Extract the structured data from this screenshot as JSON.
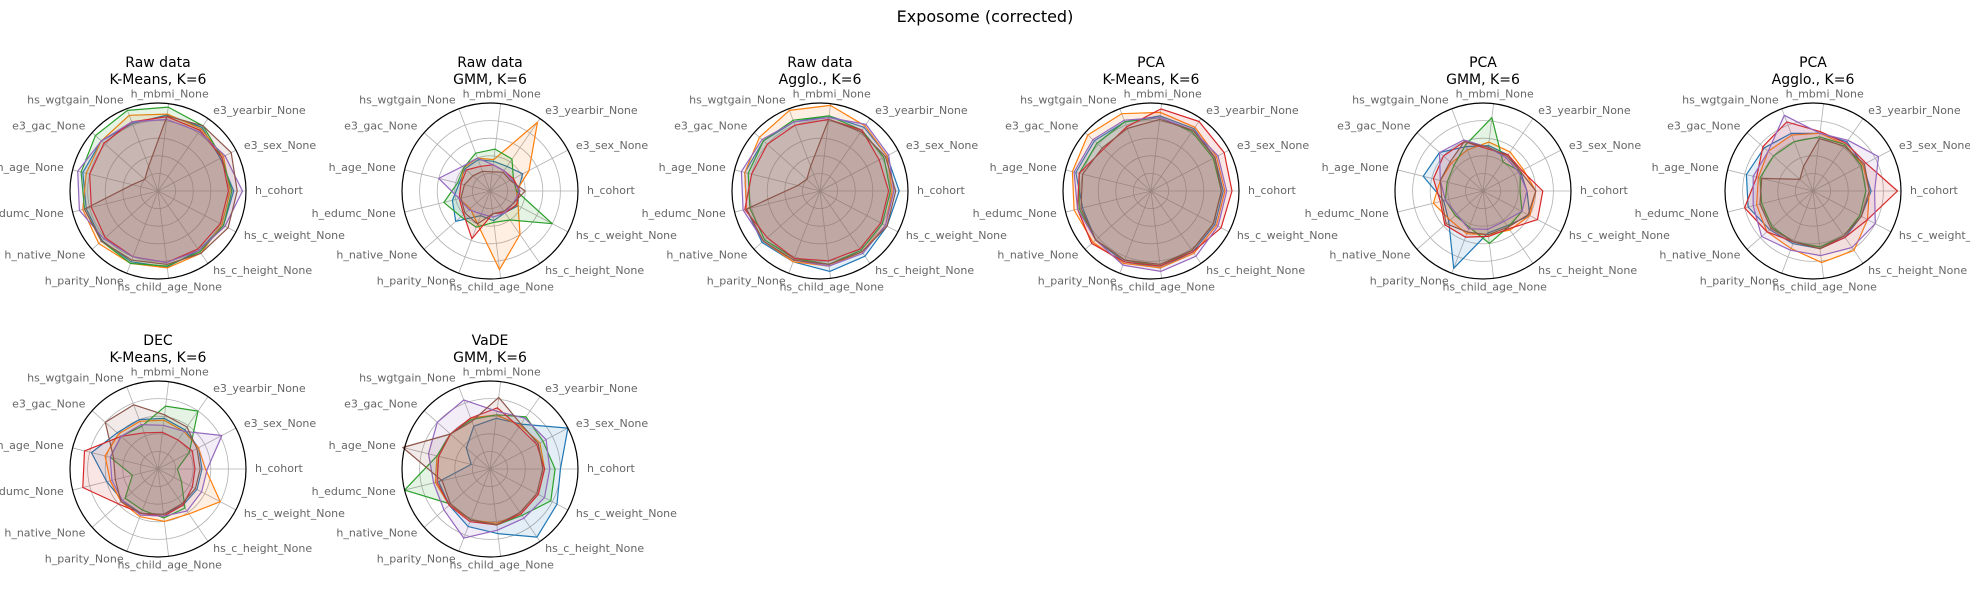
{
  "figure": {
    "title": "Exposome (corrected)"
  },
  "axis_labels": [
    "h_cohort",
    "e3_sex_None",
    "e3_yearbir_None",
    "h_mbmi_None",
    "hs_wgtgain_None",
    "e3_gac_None",
    "h_age_None",
    "h_edumc_None",
    "h_native_None",
    "h_parity_None",
    "hs_child_age_None",
    "hs_c_height_None",
    "hs_c_weight_None"
  ],
  "colors": [
    "#1f77b4",
    "#ff7f0e",
    "#2ca02c",
    "#d62728",
    "#9467bd",
    "#8c564b"
  ],
  "chart_data": [
    {
      "type": "radar",
      "title_line1": "Raw data",
      "title_line2": "K-Means, K=6",
      "rmax": 1.0,
      "grid": true,
      "series": [
        {
          "values": [
            0.86,
            0.8,
            0.88,
            0.87,
            0.82,
            0.86,
            0.88,
            0.84,
            0.85,
            0.86,
            0.87,
            0.82,
            0.84
          ]
        },
        {
          "values": [
            0.82,
            0.84,
            0.86,
            0.88,
            0.92,
            0.86,
            0.84,
            0.88,
            0.9,
            0.88,
            0.88,
            0.86,
            0.82
          ]
        },
        {
          "values": [
            0.84,
            0.82,
            0.9,
            0.96,
            0.98,
            0.95,
            0.9,
            0.86,
            0.86,
            0.88,
            0.86,
            0.84,
            0.84
          ]
        },
        {
          "values": [
            0.8,
            0.82,
            0.84,
            0.85,
            0.84,
            0.82,
            0.8,
            0.78,
            0.8,
            0.8,
            0.82,
            0.8,
            0.8
          ]
        },
        {
          "values": [
            0.96,
            0.86,
            0.82,
            0.82,
            0.84,
            0.86,
            0.94,
            0.92,
            0.82,
            0.8,
            0.82,
            0.82,
            0.86
          ]
        },
        {
          "values": [
            0.9,
            0.94,
            0.9,
            0.86,
            0.3,
            0.2,
            0.3,
            0.86,
            0.86,
            0.84,
            0.84,
            0.86,
            0.9
          ]
        }
      ]
    },
    {
      "type": "radar",
      "title_line1": "Raw data",
      "title_line2": "GMM, K=6",
      "rmax": 1.0,
      "grid": true,
      "series": [
        {
          "values": [
            0.32,
            0.42,
            0.34,
            0.34,
            0.38,
            0.38,
            0.36,
            0.44,
            0.52,
            0.3,
            0.34,
            0.3,
            0.36
          ]
        },
        {
          "values": [
            0.3,
            0.5,
            0.95,
            0.36,
            0.4,
            0.4,
            0.34,
            0.36,
            0.3,
            0.4,
            0.9,
            0.6,
            0.36
          ]
        },
        {
          "values": [
            0.3,
            0.3,
            0.44,
            0.48,
            0.46,
            0.4,
            0.38,
            0.54,
            0.44,
            0.44,
            0.36,
            0.4,
            0.8
          ]
        },
        {
          "values": [
            0.34,
            0.3,
            0.28,
            0.3,
            0.3,
            0.36,
            0.34,
            0.36,
            0.4,
            0.58,
            0.26,
            0.3,
            0.34
          ]
        },
        {
          "values": [
            0.34,
            0.28,
            0.28,
            0.3,
            0.4,
            0.42,
            0.6,
            0.36,
            0.32,
            0.28,
            0.3,
            0.3,
            0.3
          ]
        },
        {
          "values": [
            0.4,
            0.26,
            0.26,
            0.22,
            0.24,
            0.26,
            0.3,
            0.34,
            0.38,
            0.4,
            0.26,
            0.28,
            0.3
          ]
        }
      ]
    },
    {
      "type": "radar",
      "title_line1": "Raw data",
      "title_line2": "Agglo., K=6",
      "rmax": 1.0,
      "grid": true,
      "series": [
        {
          "values": [
            0.9,
            0.86,
            0.88,
            0.86,
            0.84,
            0.86,
            0.88,
            0.86,
            0.88,
            0.86,
            0.92,
            0.9,
            0.86
          ]
        },
        {
          "values": [
            0.82,
            0.86,
            0.9,
            0.98,
            0.98,
            0.92,
            0.88,
            0.86,
            0.86,
            0.86,
            0.86,
            0.84,
            0.84
          ]
        },
        {
          "values": [
            0.8,
            0.82,
            0.84,
            0.86,
            0.86,
            0.86,
            0.84,
            0.82,
            0.84,
            0.82,
            0.84,
            0.82,
            0.8
          ]
        },
        {
          "values": [
            0.78,
            0.76,
            0.84,
            0.82,
            0.8,
            0.8,
            0.8,
            0.88,
            0.8,
            0.82,
            0.8,
            0.8,
            0.78
          ]
        },
        {
          "values": [
            0.84,
            0.88,
            0.92,
            0.84,
            0.84,
            0.88,
            0.92,
            0.9,
            0.86,
            0.84,
            0.86,
            0.86,
            0.84
          ]
        },
        {
          "values": [
            0.86,
            0.84,
            0.82,
            0.82,
            0.3,
            0.2,
            0.26,
            0.86,
            0.86,
            0.84,
            0.84,
            0.84,
            0.86
          ]
        }
      ]
    },
    {
      "type": "radar",
      "title_line1": "PCA",
      "title_line2": "K-Means, K=6",
      "rmax": 1.0,
      "grid": true,
      "series": [
        {
          "values": [
            0.82,
            0.82,
            0.86,
            0.86,
            0.84,
            0.86,
            0.88,
            0.8,
            0.84,
            0.86,
            0.88,
            0.84,
            0.82
          ]
        },
        {
          "values": [
            0.84,
            0.84,
            0.88,
            0.9,
            0.94,
            0.96,
            0.92,
            0.9,
            0.88,
            0.88,
            0.88,
            0.86,
            0.84
          ]
        },
        {
          "values": [
            0.8,
            0.8,
            0.82,
            0.84,
            0.84,
            0.82,
            0.84,
            0.84,
            0.84,
            0.84,
            0.86,
            0.82,
            0.8
          ]
        },
        {
          "values": [
            0.92,
            0.94,
            0.96,
            0.94,
            0.78,
            0.72,
            0.84,
            0.86,
            0.9,
            0.86,
            0.86,
            0.84,
            0.9
          ]
        },
        {
          "values": [
            0.86,
            0.86,
            0.84,
            0.84,
            0.86,
            0.88,
            0.9,
            0.86,
            0.84,
            0.9,
            0.92,
            0.9,
            0.86
          ]
        },
        {
          "values": [
            0.8,
            0.82,
            0.84,
            0.82,
            0.76,
            0.74,
            0.8,
            0.82,
            0.84,
            0.84,
            0.84,
            0.82,
            0.8
          ]
        }
      ]
    },
    {
      "type": "radar",
      "title_line1": "PCA",
      "title_line2": "GMM, K=6",
      "rmax": 1.0,
      "grid": true,
      "series": [
        {
          "values": [
            0.5,
            0.48,
            0.5,
            0.52,
            0.54,
            0.66,
            0.7,
            0.46,
            0.52,
            0.94,
            0.48,
            0.48,
            0.6
          ]
        },
        {
          "values": [
            0.6,
            0.52,
            0.54,
            0.56,
            0.5,
            0.48,
            0.5,
            0.58,
            0.5,
            0.52,
            0.5,
            0.54,
            0.6
          ]
        },
        {
          "values": [
            0.42,
            0.48,
            0.4,
            0.84,
            0.56,
            0.44,
            0.42,
            0.44,
            0.42,
            0.44,
            0.6,
            0.5,
            0.5
          ]
        },
        {
          "values": [
            0.68,
            0.5,
            0.5,
            0.48,
            0.6,
            0.6,
            0.58,
            0.5,
            0.58,
            0.56,
            0.52,
            0.52,
            0.7
          ]
        },
        {
          "values": [
            0.5,
            0.46,
            0.46,
            0.5,
            0.62,
            0.66,
            0.5,
            0.44,
            0.4,
            0.46,
            0.44,
            0.42,
            0.5
          ]
        },
        {
          "values": [
            0.6,
            0.48,
            0.48,
            0.5,
            0.6,
            0.5,
            0.5,
            0.48,
            0.56,
            0.5,
            0.5,
            0.5,
            0.58
          ]
        }
      ]
    },
    {
      "type": "radar",
      "title_line1": "PCA",
      "title_line2": "Agglo., K=6",
      "rmax": 1.0,
      "grid": true,
      "series": [
        {
          "values": [
            0.66,
            0.64,
            0.68,
            0.66,
            0.7,
            0.74,
            0.78,
            0.76,
            0.66,
            0.64,
            0.66,
            0.64,
            0.62
          ]
        },
        {
          "values": [
            0.64,
            0.64,
            0.64,
            0.66,
            0.68,
            0.68,
            0.64,
            0.66,
            0.7,
            0.7,
            0.82,
            0.82,
            0.7
          ]
        },
        {
          "values": [
            0.6,
            0.62,
            0.64,
            0.62,
            0.6,
            0.6,
            0.62,
            0.6,
            0.62,
            0.62,
            0.64,
            0.62,
            0.6
          ]
        },
        {
          "values": [
            0.96,
            0.68,
            0.66,
            0.68,
            0.84,
            0.76,
            0.66,
            0.8,
            0.7,
            0.62,
            0.66,
            0.64,
            0.7
          ]
        },
        {
          "values": [
            0.7,
            0.84,
            0.7,
            0.66,
            0.92,
            0.68,
            0.7,
            0.7,
            0.78,
            0.72,
            0.74,
            0.78,
            0.8
          ]
        },
        {
          "values": [
            0.64,
            0.66,
            0.62,
            0.6,
            0.3,
            0.2,
            0.6,
            0.62,
            0.64,
            0.62,
            0.66,
            0.62,
            0.62
          ]
        }
      ]
    },
    {
      "type": "radar",
      "title_line1": "DEC",
      "title_line2": "K-Means, K=6",
      "rmax": 1.0,
      "grid": true,
      "series": [
        {
          "values": [
            0.5,
            0.52,
            0.54,
            0.58,
            0.6,
            0.62,
            0.78,
            0.6,
            0.54,
            0.54,
            0.52,
            0.5,
            0.5
          ]
        },
        {
          "values": [
            0.54,
            0.52,
            0.52,
            0.56,
            0.58,
            0.6,
            0.62,
            0.56,
            0.56,
            0.58,
            0.6,
            0.62,
            0.8
          ]
        },
        {
          "values": [
            0.22,
            0.4,
            0.8,
            0.72,
            0.52,
            0.56,
            0.56,
            0.3,
            0.5,
            0.5,
            0.56,
            0.54,
            0.3
          ]
        },
        {
          "values": [
            0.42,
            0.44,
            0.4,
            0.42,
            0.44,
            0.56,
            0.86,
            0.88,
            0.6,
            0.54,
            0.54,
            0.5,
            0.44
          ]
        },
        {
          "values": [
            0.56,
            0.82,
            0.52,
            0.5,
            0.54,
            0.56,
            0.56,
            0.54,
            0.54,
            0.56,
            0.54,
            0.58,
            0.56
          ]
        },
        {
          "values": [
            0.48,
            0.5,
            0.58,
            0.62,
            0.78,
            0.8,
            0.52,
            0.5,
            0.56,
            0.54,
            0.52,
            0.48,
            0.48
          ]
        }
      ]
    },
    {
      "type": "radar",
      "title_line1": "VaDE",
      "title_line2": "GMM, K=6",
      "rmax": 1.0,
      "grid": true,
      "series": [
        {
          "values": [
            0.8,
            1.0,
            0.62,
            0.58,
            0.52,
            0.36,
            0.22,
            0.6,
            0.62,
            0.7,
            0.74,
            0.94,
            0.86
          ]
        },
        {
          "values": [
            0.62,
            0.64,
            0.6,
            0.62,
            0.62,
            0.6,
            0.62,
            0.64,
            0.62,
            0.62,
            0.62,
            0.62,
            0.62
          ]
        },
        {
          "values": [
            0.74,
            0.68,
            0.72,
            0.62,
            0.6,
            0.6,
            0.62,
            1.0,
            0.6,
            0.62,
            0.64,
            0.64,
            0.78
          ]
        },
        {
          "values": [
            0.62,
            0.6,
            0.58,
            0.7,
            0.62,
            0.6,
            0.6,
            0.62,
            0.62,
            0.64,
            0.64,
            0.62,
            0.62
          ]
        },
        {
          "values": [
            0.68,
            0.72,
            0.7,
            0.66,
            0.84,
            0.8,
            0.72,
            0.66,
            0.7,
            0.84,
            0.7,
            0.68,
            0.7
          ]
        },
        {
          "values": [
            0.6,
            0.62,
            0.62,
            0.82,
            0.58,
            0.6,
            1.02,
            0.56,
            0.6,
            0.62,
            0.64,
            0.6,
            0.6
          ]
        }
      ]
    }
  ]
}
